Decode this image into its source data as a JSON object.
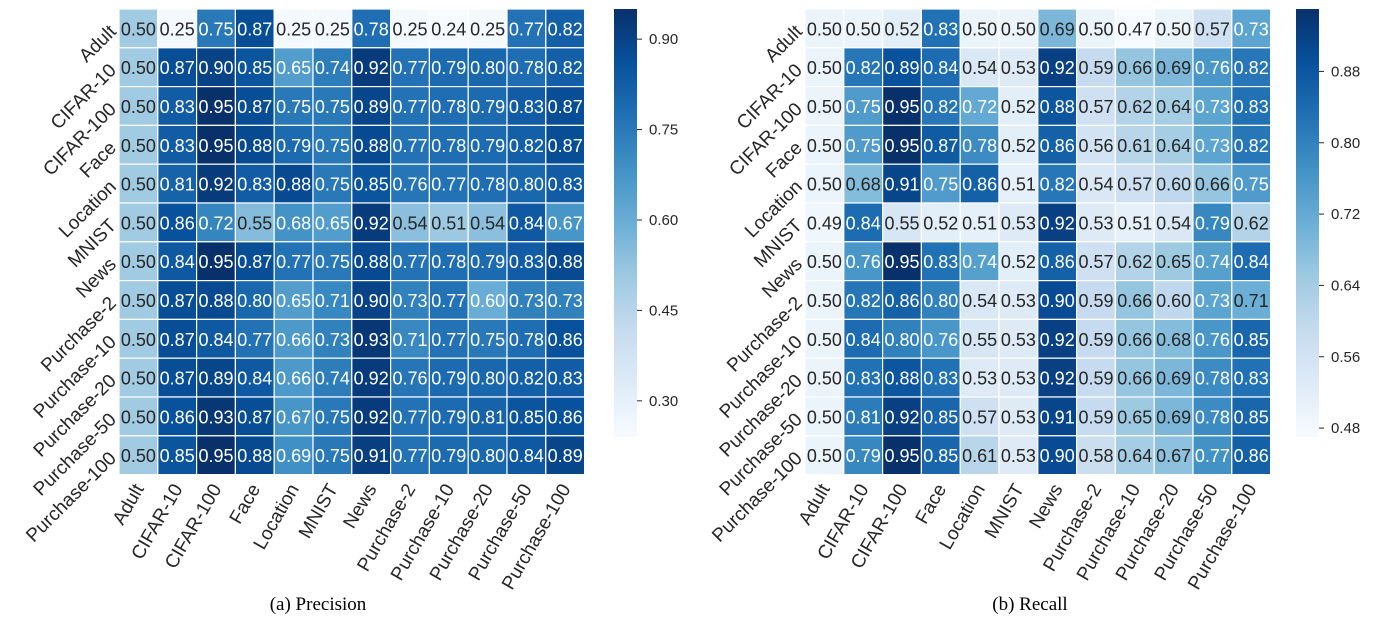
{
  "chart_data": [
    {
      "type": "heatmap",
      "caption": "(a) Precision",
      "rows": [
        "Adult",
        "CIFAR-10",
        "CIFAR-100",
        "Face",
        "Location",
        "MNIST",
        "News",
        "Purchase-2",
        "Purchase-10",
        "Purchase-20",
        "Purchase-50",
        "Purchase-100"
      ],
      "cols": [
        "Adult",
        "CIFAR-10",
        "CIFAR-100",
        "Face",
        "Location",
        "MNIST",
        "News",
        "Purchase-2",
        "Purchase-10",
        "Purchase-20",
        "Purchase-50",
        "Purchase-100"
      ],
      "values": [
        [
          0.5,
          0.25,
          0.75,
          0.87,
          0.25,
          0.25,
          0.78,
          0.25,
          0.24,
          0.25,
          0.77,
          0.82
        ],
        [
          0.5,
          0.87,
          0.9,
          0.85,
          0.65,
          0.74,
          0.92,
          0.77,
          0.79,
          0.8,
          0.78,
          0.82
        ],
        [
          0.5,
          0.83,
          0.95,
          0.87,
          0.75,
          0.75,
          0.89,
          0.77,
          0.78,
          0.79,
          0.83,
          0.87
        ],
        [
          0.5,
          0.83,
          0.95,
          0.88,
          0.79,
          0.75,
          0.88,
          0.77,
          0.78,
          0.79,
          0.82,
          0.87
        ],
        [
          0.5,
          0.81,
          0.92,
          0.83,
          0.88,
          0.75,
          0.85,
          0.76,
          0.77,
          0.78,
          0.8,
          0.83
        ],
        [
          0.5,
          0.86,
          0.72,
          0.55,
          0.68,
          0.65,
          0.92,
          0.54,
          0.51,
          0.54,
          0.84,
          0.67
        ],
        [
          0.5,
          0.84,
          0.95,
          0.87,
          0.77,
          0.75,
          0.88,
          0.77,
          0.78,
          0.79,
          0.83,
          0.88
        ],
        [
          0.5,
          0.87,
          0.88,
          0.8,
          0.65,
          0.71,
          0.9,
          0.73,
          0.77,
          0.6,
          0.73,
          0.73
        ],
        [
          0.5,
          0.87,
          0.84,
          0.77,
          0.66,
          0.73,
          0.93,
          0.71,
          0.77,
          0.75,
          0.78,
          0.86
        ],
        [
          0.5,
          0.87,
          0.89,
          0.84,
          0.66,
          0.74,
          0.92,
          0.76,
          0.79,
          0.8,
          0.82,
          0.83
        ],
        [
          0.5,
          0.86,
          0.93,
          0.87,
          0.67,
          0.75,
          0.92,
          0.77,
          0.79,
          0.81,
          0.85,
          0.86
        ],
        [
          0.5,
          0.85,
          0.95,
          0.88,
          0.69,
          0.75,
          0.91,
          0.77,
          0.79,
          0.8,
          0.84,
          0.89
        ]
      ],
      "vmin": 0.24,
      "vmax": 0.95,
      "colorbar_ticks": [
        "0.30",
        "0.45",
        "0.60",
        "0.75",
        "0.90"
      ],
      "colormap": "Blues"
    },
    {
      "type": "heatmap",
      "caption": "(b) Recall",
      "rows": [
        "Adult",
        "CIFAR-10",
        "CIFAR-100",
        "Face",
        "Location",
        "MNIST",
        "News",
        "Purchase-2",
        "Purchase-10",
        "Purchase-20",
        "Purchase-50",
        "Purchase-100"
      ],
      "cols": [
        "Adult",
        "CIFAR-10",
        "CIFAR-100",
        "Face",
        "Location",
        "MNIST",
        "News",
        "Purchase-2",
        "Purchase-10",
        "Purchase-20",
        "Purchase-50",
        "Purchase-100"
      ],
      "values": [
        [
          0.5,
          0.5,
          0.52,
          0.83,
          0.5,
          0.5,
          0.69,
          0.5,
          0.47,
          0.5,
          0.57,
          0.73
        ],
        [
          0.5,
          0.82,
          0.89,
          0.84,
          0.54,
          0.53,
          0.92,
          0.59,
          0.66,
          0.69,
          0.76,
          0.82
        ],
        [
          0.5,
          0.75,
          0.95,
          0.82,
          0.72,
          0.52,
          0.88,
          0.57,
          0.62,
          0.64,
          0.73,
          0.83
        ],
        [
          0.5,
          0.75,
          0.95,
          0.87,
          0.78,
          0.52,
          0.86,
          0.56,
          0.61,
          0.64,
          0.73,
          0.82
        ],
        [
          0.5,
          0.68,
          0.91,
          0.75,
          0.86,
          0.51,
          0.82,
          0.54,
          0.57,
          0.6,
          0.66,
          0.75
        ],
        [
          0.49,
          0.84,
          0.55,
          0.52,
          0.51,
          0.53,
          0.92,
          0.53,
          0.51,
          0.54,
          0.79,
          0.62
        ],
        [
          0.5,
          0.76,
          0.95,
          0.83,
          0.74,
          0.52,
          0.86,
          0.57,
          0.62,
          0.65,
          0.74,
          0.84
        ],
        [
          0.5,
          0.82,
          0.86,
          0.8,
          0.54,
          0.53,
          0.9,
          0.59,
          0.66,
          0.6,
          0.73,
          0.71
        ],
        [
          0.5,
          0.84,
          0.8,
          0.76,
          0.55,
          0.53,
          0.92,
          0.59,
          0.66,
          0.68,
          0.76,
          0.85
        ],
        [
          0.5,
          0.83,
          0.88,
          0.83,
          0.53,
          0.53,
          0.92,
          0.59,
          0.66,
          0.69,
          0.78,
          0.83
        ],
        [
          0.5,
          0.81,
          0.92,
          0.85,
          0.57,
          0.53,
          0.91,
          0.59,
          0.65,
          0.69,
          0.78,
          0.85
        ],
        [
          0.5,
          0.79,
          0.95,
          0.85,
          0.61,
          0.53,
          0.9,
          0.58,
          0.64,
          0.67,
          0.77,
          0.86
        ]
      ],
      "vmin": 0.47,
      "vmax": 0.95,
      "colorbar_ticks": [
        "0.48",
        "0.56",
        "0.64",
        "0.72",
        "0.80",
        "0.88"
      ],
      "colormap": "Blues"
    }
  ]
}
